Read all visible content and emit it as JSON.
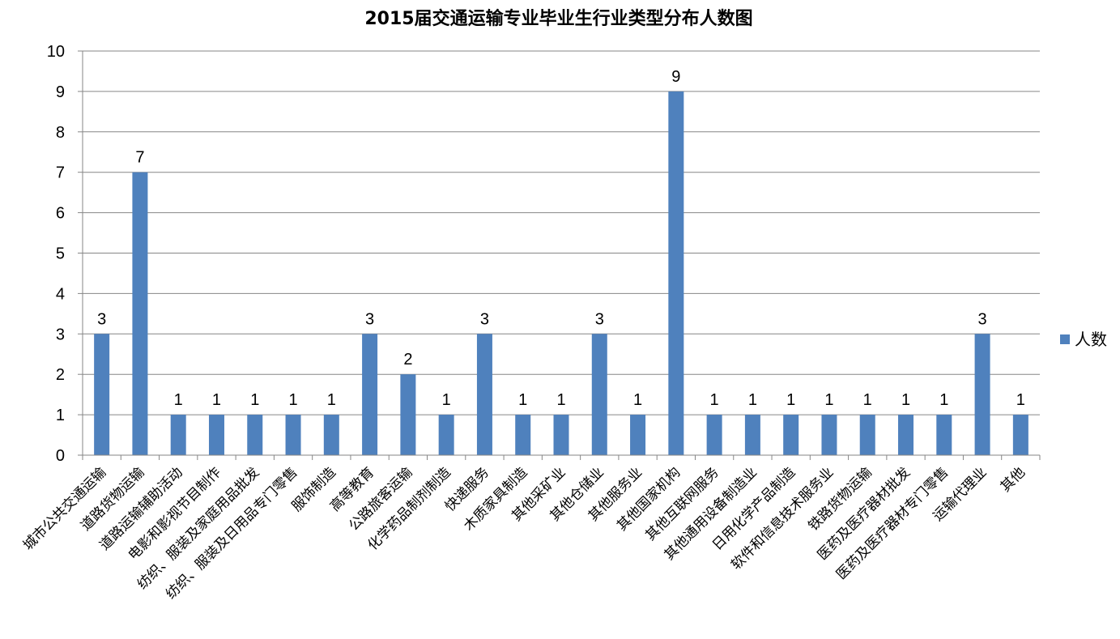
{
  "chart_data": {
    "type": "bar",
    "title": "2015届交通运输专业毕业生行业类型分布人数图",
    "categories": [
      "城市公共交通运输",
      "道路货物运输",
      "道路运输辅助活动",
      "电影和影视节目制作",
      "纺织、服装及家庭用品批发",
      "纺织、服装及日用品专门零售",
      "服饰制造",
      "高等教育",
      "公路旅客运输",
      "化学药品制剂制造",
      "快递服务",
      "木质家具制造",
      "其他采矿业",
      "其他仓储业",
      "其他服务业",
      "其他国家机构",
      "其他互联网服务",
      "其他通用设备制造业",
      "日用化学产品制造",
      "软件和信息技术服务业",
      "铁路货物运输",
      "医药及医疗器材批发",
      "医药及医疗器材专门零售",
      "运输代理业",
      "其他"
    ],
    "series": [
      {
        "name": "人数",
        "values": [
          3,
          7,
          1,
          1,
          1,
          1,
          1,
          3,
          2,
          1,
          3,
          1,
          1,
          3,
          1,
          9,
          1,
          1,
          1,
          1,
          1,
          1,
          1,
          3,
          1
        ]
      }
    ],
    "ylim": [
      0,
      10
    ],
    "yticks": [
      "0",
      "1",
      "2",
      "3",
      "4",
      "5",
      "6",
      "7",
      "8",
      "9",
      "10"
    ],
    "grid": true,
    "legend": "right",
    "colors": {
      "bar": "#4F81BD",
      "grid": "#868686",
      "axis": "#868686"
    }
  }
}
